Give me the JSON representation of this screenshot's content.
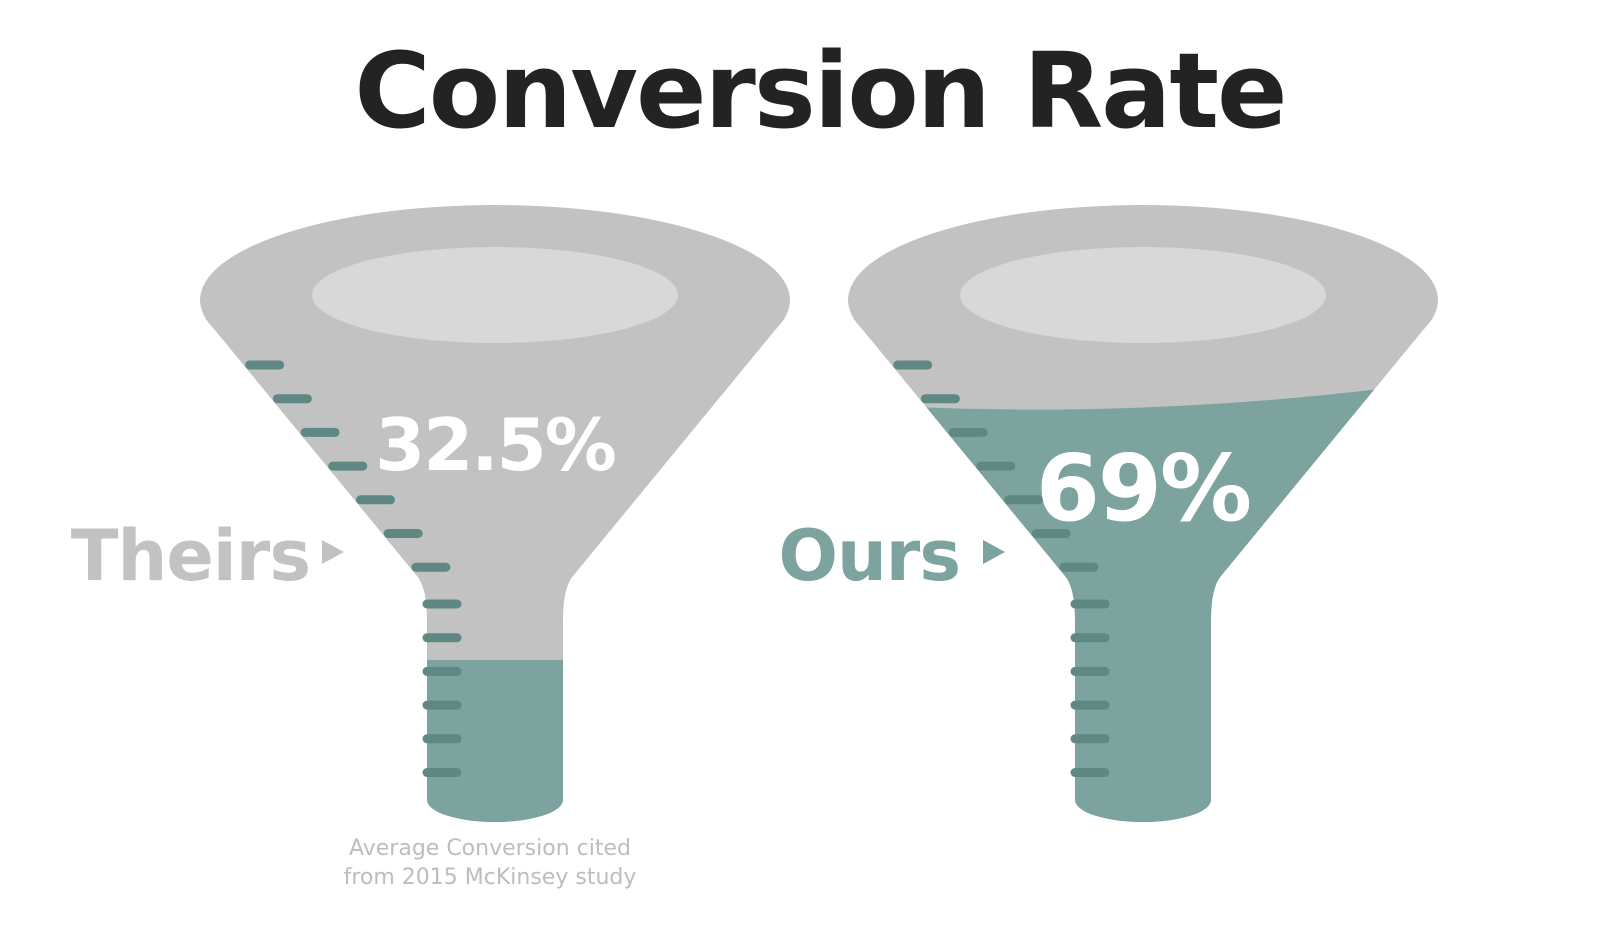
{
  "chart_data": {
    "type": "funnel",
    "title": "Conversion Rate",
    "series": [
      {
        "name": "Theirs",
        "value": 32.5,
        "value_label": "32.5%",
        "label_color": "#c2c2c2"
      },
      {
        "name": "Ours",
        "value": 69,
        "value_label": "69%",
        "label_color": "#7ca39d"
      }
    ],
    "footnote": {
      "line1": "Average Conversion cited",
      "line2": "from 2015 McKinsey study"
    }
  },
  "colors": {
    "funnel_body": "#c2c2c2",
    "funnel_mouth": "#d8d8d8",
    "fill": "#7ca39d",
    "ticks": "#5f8882",
    "title": "#232323"
  }
}
